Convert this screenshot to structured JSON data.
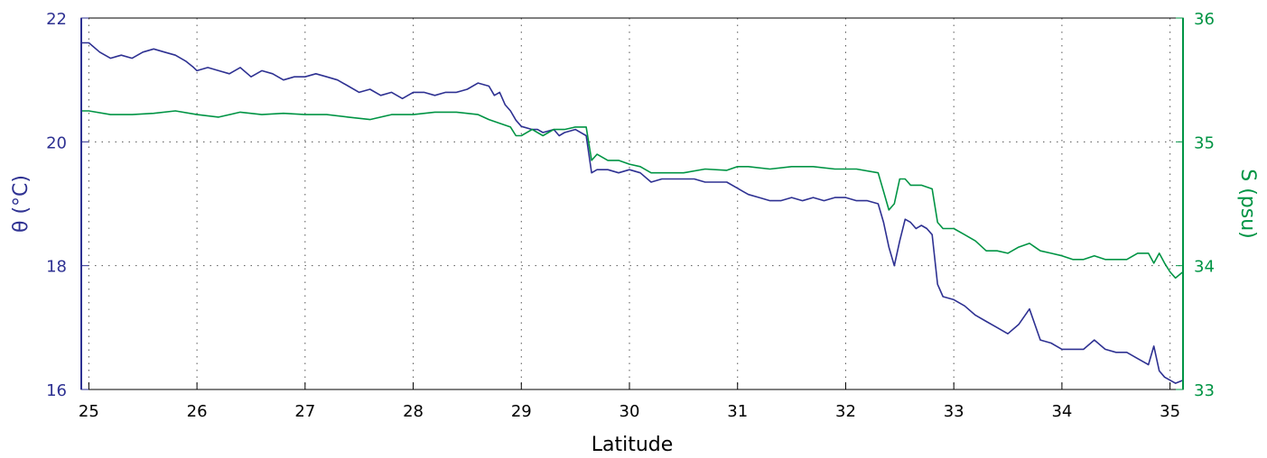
{
  "chart_data": {
    "type": "line",
    "title": "",
    "xlabel": "Latitude",
    "ylabel_left": "θ (°C)",
    "ylabel_right": "S (psu)",
    "xlim": [
      24.93,
      35.12
    ],
    "ylim_left": [
      16,
      22
    ],
    "ylim_right": [
      33,
      36
    ],
    "xticks": [
      25,
      26,
      27,
      28,
      29,
      30,
      31,
      32,
      33,
      34,
      35
    ],
    "yticks_left": [
      16,
      18,
      20,
      22
    ],
    "yticks_right": [
      33,
      34,
      35,
      36
    ],
    "grid": true,
    "colors": {
      "temperature": "#2e3192",
      "salinity": "#009444",
      "axes": "#000000"
    },
    "series": [
      {
        "axis": "left",
        "x": [
          24.93,
          25.0,
          25.1,
          25.2,
          25.3,
          25.4,
          25.5,
          25.6,
          25.7,
          25.8,
          25.9,
          25.97,
          26.0,
          26.1,
          26.2,
          26.3,
          26.4,
          26.5,
          26.6,
          26.7,
          26.8,
          26.9,
          27.0,
          27.1,
          27.2,
          27.3,
          27.4,
          27.5,
          27.6,
          27.7,
          27.8,
          27.9,
          28.0,
          28.1,
          28.2,
          28.3,
          28.4,
          28.5,
          28.6,
          28.7,
          28.75,
          28.8,
          28.85,
          28.9,
          28.95,
          29.0,
          29.1,
          29.15,
          29.2,
          29.3,
          29.35,
          29.4,
          29.5,
          29.6,
          29.65,
          29.7,
          29.8,
          29.9,
          30.0,
          30.1,
          30.2,
          30.3,
          30.4,
          30.5,
          30.6,
          30.7,
          30.8,
          30.9,
          31.0,
          31.05,
          31.1,
          31.2,
          31.3,
          31.4,
          31.5,
          31.6,
          31.7,
          31.8,
          31.9,
          32.0,
          32.1,
          32.2,
          32.3,
          32.35,
          32.4,
          32.45,
          32.5,
          32.55,
          32.6,
          32.65,
          32.7,
          32.75,
          32.8,
          32.85,
          32.9,
          33.0,
          33.1,
          33.2,
          33.3,
          33.4,
          33.5,
          33.6,
          33.7,
          33.8,
          33.9,
          34.0,
          34.1,
          34.2,
          34.3,
          34.4,
          34.5,
          34.6,
          34.7,
          34.8,
          34.85,
          34.9,
          34.95,
          35.0,
          35.05,
          35.12
        ],
        "y": [
          21.6,
          21.6,
          21.45,
          21.35,
          21.4,
          21.35,
          21.45,
          21.5,
          21.45,
          21.4,
          21.3,
          21.2,
          21.15,
          21.2,
          21.15,
          21.1,
          21.2,
          21.05,
          21.15,
          21.1,
          21.0,
          21.05,
          21.05,
          21.1,
          21.05,
          21.0,
          20.9,
          20.8,
          20.85,
          20.75,
          20.8,
          20.7,
          20.8,
          20.8,
          20.75,
          20.8,
          20.8,
          20.85,
          20.95,
          20.9,
          20.75,
          20.8,
          20.6,
          20.5,
          20.35,
          20.25,
          20.2,
          20.2,
          20.15,
          20.2,
          20.1,
          20.15,
          20.2,
          20.1,
          19.5,
          19.55,
          19.55,
          19.5,
          19.55,
          19.5,
          19.35,
          19.4,
          19.4,
          19.4,
          19.4,
          19.35,
          19.35,
          19.35,
          19.25,
          19.2,
          19.15,
          19.1,
          19.05,
          19.05,
          19.1,
          19.05,
          19.1,
          19.05,
          19.1,
          19.1,
          19.05,
          19.05,
          19.0,
          18.7,
          18.3,
          18.0,
          18.4,
          18.75,
          18.7,
          18.6,
          18.65,
          18.6,
          18.5,
          17.7,
          17.5,
          17.45,
          17.35,
          17.2,
          17.1,
          17.0,
          16.9,
          17.05,
          17.3,
          16.8,
          16.75,
          16.65,
          16.65,
          16.65,
          16.8,
          16.65,
          16.6,
          16.6,
          16.5,
          16.4,
          16.7,
          16.3,
          16.2,
          16.15,
          16.1,
          16.15
        ]
      },
      {
        "axis": "right",
        "x": [
          24.93,
          25.0,
          25.2,
          25.4,
          25.6,
          25.8,
          26.0,
          26.2,
          26.4,
          26.6,
          26.8,
          27.0,
          27.2,
          27.4,
          27.6,
          27.8,
          28.0,
          28.2,
          28.4,
          28.6,
          28.7,
          28.8,
          28.9,
          28.95,
          29.0,
          29.1,
          29.2,
          29.3,
          29.4,
          29.5,
          29.6,
          29.65,
          29.7,
          29.8,
          29.9,
          30.0,
          30.1,
          30.2,
          30.3,
          30.5,
          30.7,
          30.9,
          31.0,
          31.05,
          31.1,
          31.3,
          31.5,
          31.7,
          31.9,
          32.1,
          32.3,
          32.35,
          32.4,
          32.45,
          32.5,
          32.55,
          32.6,
          32.7,
          32.8,
          32.85,
          32.9,
          33.0,
          33.1,
          33.2,
          33.3,
          33.4,
          33.5,
          33.6,
          33.7,
          33.8,
          33.9,
          34.0,
          34.1,
          34.2,
          34.3,
          34.4,
          34.5,
          34.6,
          34.7,
          34.8,
          34.85,
          34.9,
          34.95,
          35.0,
          35.05,
          35.12
        ],
        "y": [
          35.25,
          35.25,
          35.22,
          35.22,
          35.23,
          35.25,
          35.22,
          35.2,
          35.24,
          35.22,
          35.23,
          35.22,
          35.22,
          35.2,
          35.18,
          35.22,
          35.22,
          35.24,
          35.24,
          35.22,
          35.18,
          35.15,
          35.12,
          35.05,
          35.05,
          35.1,
          35.05,
          35.1,
          35.1,
          35.12,
          35.12,
          34.85,
          34.9,
          34.85,
          34.85,
          34.82,
          34.8,
          34.75,
          34.75,
          34.75,
          34.78,
          34.77,
          34.8,
          34.8,
          34.8,
          34.78,
          34.8,
          34.8,
          34.78,
          34.78,
          34.75,
          34.6,
          34.45,
          34.5,
          34.7,
          34.7,
          34.65,
          34.65,
          34.62,
          34.35,
          34.3,
          34.3,
          34.25,
          34.2,
          34.12,
          34.12,
          34.1,
          34.15,
          34.18,
          34.12,
          34.1,
          34.08,
          34.05,
          34.05,
          34.08,
          34.05,
          34.05,
          34.05,
          34.1,
          34.1,
          34.02,
          34.1,
          34.02,
          33.95,
          33.9,
          33.95
        ]
      }
    ]
  }
}
